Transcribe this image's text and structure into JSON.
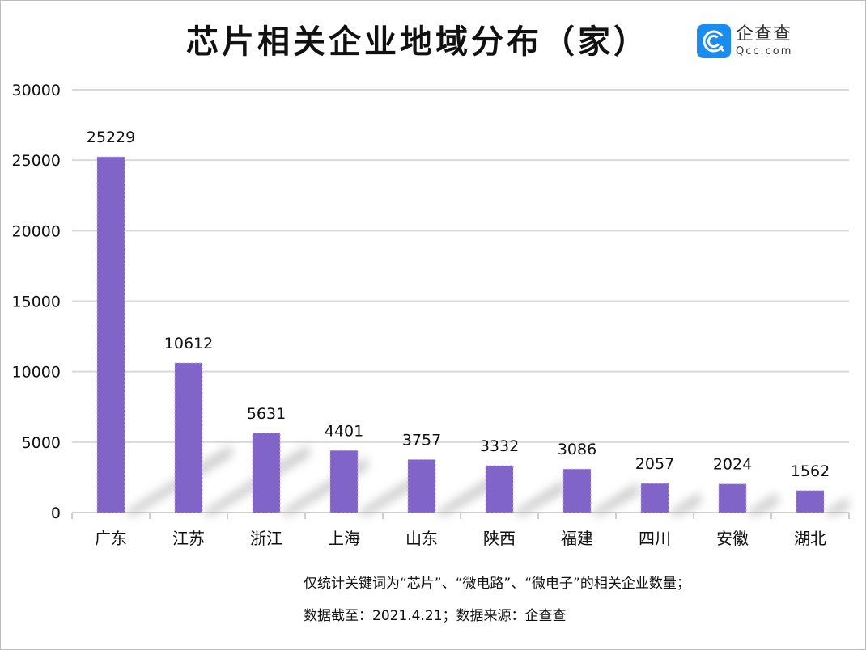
{
  "title": "芯片相关企业地域分布（家）",
  "logo": {
    "name_cn": "企查查",
    "name_en": "Qcc.com",
    "color": "#1a8cf0"
  },
  "chart_data": {
    "type": "bar",
    "title": "芯片相关企业地域分布（家）",
    "categories": [
      "广东",
      "江苏",
      "浙江",
      "上海",
      "山东",
      "陕西",
      "福建",
      "四川",
      "安徽",
      "湖北"
    ],
    "values": [
      25229,
      10612,
      5631,
      4401,
      3757,
      3332,
      3086,
      2057,
      2024,
      1562
    ],
    "ylim": [
      0,
      30000
    ],
    "yticks": [
      0,
      5000,
      10000,
      15000,
      20000,
      25000,
      30000
    ],
    "grid": true,
    "data_labels": true,
    "bar_color": "#8064c8"
  },
  "notes": [
    "仅统计关键词为“芯片”、“微电路”、“微电子”的相关企业数量；",
    "数据截至：2021.4.21；数据来源：企查查"
  ]
}
